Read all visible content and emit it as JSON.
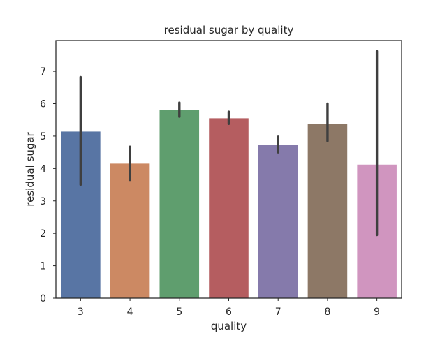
{
  "chart_data": {
    "type": "bar",
    "title": "residual sugar by quality",
    "xlabel": "quality",
    "ylabel": "residual sugar",
    "categories": [
      "3",
      "4",
      "5",
      "6",
      "7",
      "8",
      "9"
    ],
    "values": [
      5.14,
      4.15,
      5.81,
      5.55,
      4.73,
      5.37,
      4.12
    ],
    "error_bars": [
      {
        "low": 3.5,
        "high": 6.82
      },
      {
        "low": 3.65,
        "high": 4.67
      },
      {
        "low": 5.6,
        "high": 6.03
      },
      {
        "low": 5.38,
        "high": 5.75
      },
      {
        "low": 4.5,
        "high": 4.98
      },
      {
        "low": 4.85,
        "high": 6.0
      },
      {
        "low": 1.95,
        "high": 7.62
      }
    ],
    "colors": [
      "#5875a4",
      "#cc8963",
      "#5f9e6e",
      "#b55d60",
      "#857aab",
      "#8d7866",
      "#d095bf"
    ],
    "error_color": "#3f3f3f",
    "yticks": [
      0,
      1,
      2,
      3,
      4,
      5,
      6,
      7
    ],
    "ylim": [
      0,
      7.95
    ],
    "grid": false
  }
}
